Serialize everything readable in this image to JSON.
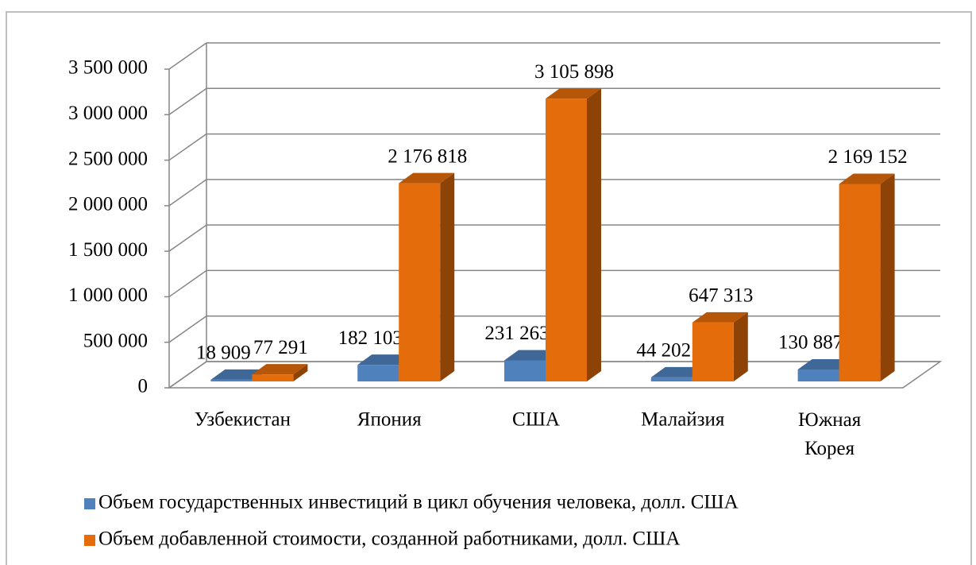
{
  "chart_data": {
    "type": "bar3d",
    "categories": [
      "Узбекистан",
      "Япония",
      "США",
      "Малайзия",
      "Южная Корея"
    ],
    "series": [
      {
        "name": "Объем государственных инвестиций в цикл обучения человека, долл. США",
        "color": "#4f81bd",
        "values": [
          18909,
          182103,
          231263,
          44202,
          130887
        ],
        "value_labels": [
          "18 909",
          "182 103",
          "231 263",
          "44 202",
          "130 887"
        ]
      },
      {
        "name": "Объем добавленной стоимости, созданной работниками, долл. США",
        "color": "#e46c0a",
        "values": [
          77291,
          2176818,
          3105898,
          647313,
          2169152
        ],
        "value_labels": [
          "77 291",
          "2 176 818",
          "3 105 898",
          "647 313",
          "2 169 152"
        ]
      }
    ],
    "ylim": [
      0,
      3500000
    ],
    "yticks": [
      0,
      {
        "value": 500000,
        "label": "500 000"
      },
      {
        "value": 1000000,
        "label": "1 000 000"
      },
      {
        "value": 1500000,
        "label": "1 500 000"
      },
      {
        "value": 2000000,
        "label": "2 000 000"
      },
      {
        "value": 2500000,
        "label": "2 500 000"
      },
      {
        "value": 3000000,
        "label": "3 000 000"
      },
      {
        "value": 3500000,
        "label": "3 500 000"
      }
    ],
    "grid": true,
    "legend": "bottom"
  }
}
